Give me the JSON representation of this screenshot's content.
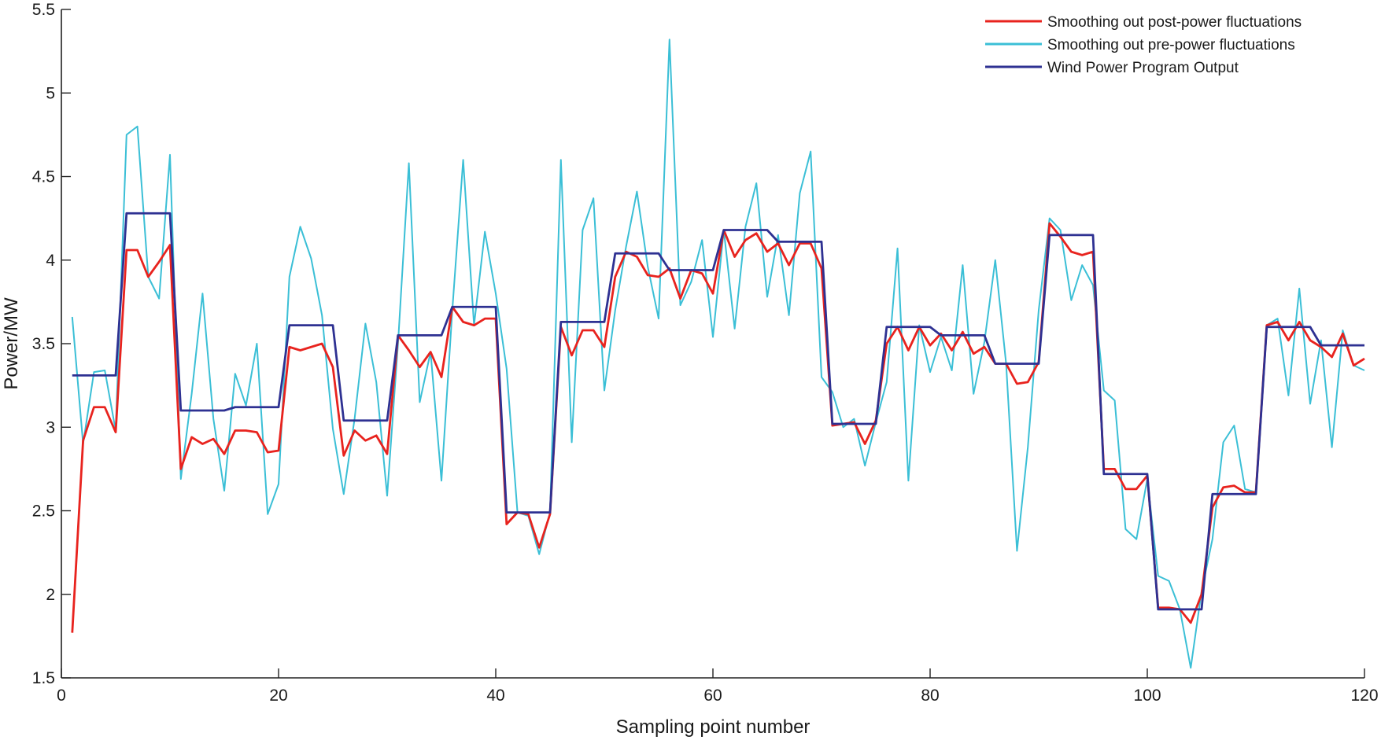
{
  "chart_data": {
    "type": "line",
    "title": "",
    "xlabel": "Sampling point number",
    "ylabel": "Power/MW",
    "xlim": [
      0,
      120
    ],
    "ylim": [
      1.5,
      5.5
    ],
    "xticks": [
      0,
      20,
      40,
      60,
      80,
      100,
      120
    ],
    "yticks": [
      1.5,
      2,
      2.5,
      3,
      3.5,
      4,
      4.5,
      5,
      5.5
    ],
    "xtick_labels": [
      "0",
      "20",
      "40",
      "60",
      "80",
      "100",
      "120"
    ],
    "ytick_labels": [
      "1.5",
      "2",
      "2.5",
      "3",
      "3.5",
      "4",
      "4.5",
      "5",
      "5.5"
    ],
    "legend_position": "top-right",
    "x": [
      1,
      2,
      3,
      4,
      5,
      6,
      7,
      8,
      9,
      10,
      11,
      12,
      13,
      14,
      15,
      16,
      17,
      18,
      19,
      20,
      21,
      22,
      23,
      24,
      25,
      26,
      27,
      28,
      29,
      30,
      31,
      32,
      33,
      34,
      35,
      36,
      37,
      38,
      39,
      40,
      41,
      42,
      43,
      44,
      45,
      46,
      47,
      48,
      49,
      50,
      51,
      52,
      53,
      54,
      55,
      56,
      57,
      58,
      59,
      60,
      61,
      62,
      63,
      64,
      65,
      66,
      67,
      68,
      69,
      70,
      71,
      72,
      73,
      74,
      75,
      76,
      77,
      78,
      79,
      80,
      81,
      82,
      83,
      84,
      85,
      86,
      87,
      88,
      89,
      90,
      91,
      92,
      93,
      94,
      95,
      96,
      97,
      98,
      99,
      100,
      101,
      102,
      103,
      104,
      105,
      106,
      107,
      108,
      109,
      110,
      111,
      112,
      113,
      114,
      115,
      116,
      117,
      118,
      119,
      120
    ],
    "series": [
      {
        "name": "Smoothing out pre-power fluctuations",
        "color": "#3bbfd6",
        "values": [
          3.66,
          2.9,
          3.33,
          3.34,
          2.98,
          4.75,
          4.8,
          3.9,
          3.77,
          4.63,
          2.69,
          3.2,
          3.8,
          3.05,
          2.62,
          3.32,
          3.13,
          3.5,
          2.48,
          2.66,
          3.9,
          4.2,
          4.01,
          3.67,
          2.99,
          2.6,
          3.05,
          3.62,
          3.27,
          2.59,
          3.5,
          4.58,
          3.15,
          3.45,
          2.68,
          3.7,
          4.6,
          3.61,
          4.17,
          3.8,
          3.35,
          2.49,
          2.47,
          2.24,
          2.49,
          4.6,
          2.91,
          4.18,
          4.37,
          3.22,
          3.7,
          4.08,
          4.41,
          3.96,
          3.65,
          5.32,
          3.73,
          3.87,
          4.12,
          3.54,
          4.18,
          3.59,
          4.2,
          4.46,
          3.78,
          4.15,
          3.67,
          4.4,
          4.65,
          3.3,
          3.21,
          3.0,
          3.05,
          2.77,
          3.03,
          3.27,
          4.07,
          2.68,
          3.61,
          3.33,
          3.54,
          3.34,
          3.97,
          3.2,
          3.51,
          4.0,
          3.38,
          2.26,
          2.88,
          3.7,
          4.25,
          4.18,
          3.76,
          3.97,
          3.85,
          3.22,
          3.16,
          2.39,
          2.33,
          2.69,
          2.11,
          2.08,
          1.91,
          1.56,
          2.02,
          2.33,
          2.91,
          3.01,
          2.63,
          2.61,
          3.61,
          3.65,
          3.19,
          3.83,
          3.14,
          3.52,
          2.88,
          3.58,
          3.37,
          3.34
        ]
      },
      {
        "name": "Smoothing out post-power fluctuations",
        "color": "#e8231e",
        "values": [
          1.77,
          2.92,
          3.12,
          3.12,
          2.97,
          4.06,
          4.06,
          3.9,
          3.99,
          4.09,
          2.75,
          2.94,
          2.9,
          2.93,
          2.84,
          2.98,
          2.98,
          2.97,
          2.85,
          2.86,
          3.48,
          3.46,
          3.48,
          3.5,
          3.36,
          2.83,
          2.98,
          2.92,
          2.95,
          2.84,
          3.55,
          3.46,
          3.36,
          3.45,
          3.3,
          3.72,
          3.63,
          3.61,
          3.65,
          3.65,
          2.42,
          2.49,
          2.48,
          2.28,
          2.48,
          3.6,
          3.43,
          3.58,
          3.58,
          3.48,
          3.9,
          4.05,
          4.02,
          3.91,
          3.9,
          3.95,
          3.77,
          3.94,
          3.92,
          3.8,
          4.18,
          4.02,
          4.12,
          4.16,
          4.05,
          4.1,
          3.97,
          4.1,
          4.1,
          3.95,
          3.01,
          3.02,
          3.03,
          2.9,
          3.04,
          3.5,
          3.6,
          3.46,
          3.6,
          3.49,
          3.56,
          3.46,
          3.57,
          3.44,
          3.48,
          3.38,
          3.38,
          3.26,
          3.27,
          3.39,
          4.22,
          4.14,
          4.05,
          4.03,
          4.05,
          2.75,
          2.75,
          2.63,
          2.63,
          2.71,
          1.92,
          1.92,
          1.91,
          1.83,
          2.0,
          2.52,
          2.64,
          2.65,
          2.61,
          2.61,
          3.61,
          3.63,
          3.52,
          3.63,
          3.52,
          3.48,
          3.42,
          3.56,
          3.37,
          3.41
        ]
      },
      {
        "name": "Wind Power Program Output",
        "color": "#2e3192",
        "values": [
          3.31,
          3.31,
          3.31,
          3.31,
          3.31,
          4.28,
          4.28,
          4.28,
          4.28,
          4.28,
          3.1,
          3.1,
          3.1,
          3.1,
          3.1,
          3.12,
          3.12,
          3.12,
          3.12,
          3.12,
          3.61,
          3.61,
          3.61,
          3.61,
          3.61,
          3.04,
          3.04,
          3.04,
          3.04,
          3.04,
          3.55,
          3.55,
          3.55,
          3.55,
          3.55,
          3.72,
          3.72,
          3.72,
          3.72,
          3.72,
          2.49,
          2.49,
          2.49,
          2.49,
          2.49,
          3.63,
          3.63,
          3.63,
          3.63,
          3.63,
          4.04,
          4.04,
          4.04,
          4.04,
          4.04,
          3.94,
          3.94,
          3.94,
          3.94,
          3.94,
          4.18,
          4.18,
          4.18,
          4.18,
          4.18,
          4.11,
          4.11,
          4.11,
          4.11,
          4.11,
          3.02,
          3.02,
          3.02,
          3.02,
          3.02,
          3.6,
          3.6,
          3.6,
          3.6,
          3.6,
          3.55,
          3.55,
          3.55,
          3.55,
          3.55,
          3.38,
          3.38,
          3.38,
          3.38,
          3.38,
          4.15,
          4.15,
          4.15,
          4.15,
          4.15,
          2.72,
          2.72,
          2.72,
          2.72,
          2.72,
          1.91,
          1.91,
          1.91,
          1.91,
          1.91,
          2.6,
          2.6,
          2.6,
          2.6,
          2.6,
          3.6,
          3.6,
          3.6,
          3.6,
          3.6,
          3.49,
          3.49,
          3.49,
          3.49,
          3.49
        ]
      }
    ],
    "legend": [
      {
        "label": "Smoothing out post-power fluctuations",
        "color": "#e8231e"
      },
      {
        "label": "Smoothing out pre-power fluctuations",
        "color": "#3bbfd6"
      },
      {
        "label": "Wind Power Program Output",
        "color": "#2e3192"
      }
    ]
  }
}
